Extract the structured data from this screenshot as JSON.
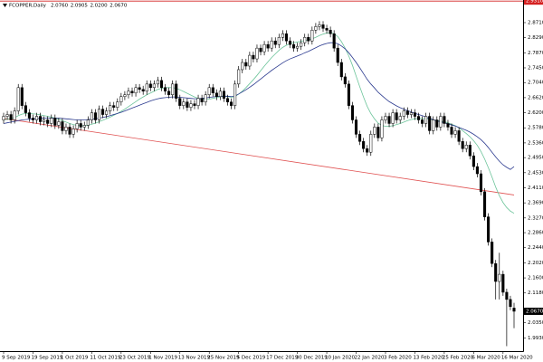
{
  "chart_data": {
    "type": "candlestick",
    "symbol": "FCOPPER,Daily",
    "header_labels": [
      "2.0760",
      "2.0905",
      "2.0200",
      "2.0670"
    ],
    "categories": [
      "9 Sep 2019",
      null,
      null,
      null,
      null,
      null,
      null,
      null,
      "19 Sep 2019",
      null,
      null,
      null,
      null,
      null,
      null,
      null,
      "1 Oct 2019",
      null,
      null,
      null,
      null,
      null,
      null,
      null,
      "11 Oct 2019",
      null,
      null,
      null,
      null,
      null,
      null,
      null,
      "23 Oct 2019",
      null,
      null,
      null,
      null,
      null,
      null,
      null,
      "1 Nov 2019",
      null,
      null,
      null,
      null,
      null,
      null,
      null,
      "13 Nov 2019",
      null,
      null,
      null,
      null,
      null,
      null,
      null,
      "25 Nov 2019",
      null,
      null,
      null,
      null,
      null,
      null,
      null,
      "5 Dec 2019",
      null,
      null,
      null,
      null,
      null,
      null,
      null,
      "17 Dec 2019",
      null,
      null,
      null,
      null,
      null,
      null,
      null,
      "30 Dec 2019",
      null,
      null,
      null,
      null,
      null,
      null,
      null,
      "10 Jan 2020",
      null,
      null,
      null,
      null,
      null,
      null,
      null,
      "22 Jan 2020",
      null,
      null,
      null,
      null,
      null,
      null,
      null,
      "3 Feb 2020",
      null,
      null,
      null,
      null,
      null,
      null,
      null,
      "13 Feb 2020",
      null,
      null,
      null,
      null,
      null,
      null,
      null,
      "25 Feb 2020",
      null,
      null,
      null,
      null,
      null,
      null,
      null,
      "6 Mar 2020",
      null,
      null,
      null,
      null,
      null,
      null,
      null,
      "16 Mar 2020",
      null,
      null,
      null
    ],
    "open": [
      2.6,
      2.61,
      2.615,
      2.6,
      2.625,
      2.69,
      2.64,
      2.62,
      2.605,
      2.6,
      2.61,
      2.595,
      2.6,
      2.59,
      2.605,
      2.585,
      2.595,
      2.57,
      2.58,
      2.56,
      2.575,
      2.59,
      2.58,
      2.585,
      2.6,
      2.62,
      2.6,
      2.63,
      2.615,
      2.625,
      2.64,
      2.635,
      2.65,
      2.665,
      2.67,
      2.68,
      2.675,
      2.69,
      2.685,
      2.68,
      2.7,
      2.69,
      2.7,
      2.71,
      2.69,
      2.68,
      2.67,
      2.7,
      2.66,
      2.64,
      2.65,
      2.635,
      2.645,
      2.64,
      2.66,
      2.65,
      2.67,
      2.69,
      2.675,
      2.665,
      2.68,
      2.66,
      2.65,
      2.64,
      2.7,
      2.74,
      2.76,
      2.75,
      2.78,
      2.77,
      2.8,
      2.79,
      2.81,
      2.8,
      2.82,
      2.81,
      2.83,
      2.84,
      2.82,
      2.81,
      2.8,
      2.805,
      2.815,
      2.83,
      2.82,
      2.85,
      2.86,
      2.865,
      2.855,
      2.85,
      2.84,
      2.8,
      2.76,
      2.72,
      2.7,
      2.64,
      2.6,
      2.56,
      2.54,
      2.52,
      2.51,
      2.56,
      2.58,
      2.55,
      2.6,
      2.61,
      2.59,
      2.62,
      2.6,
      2.61,
      2.625,
      2.615,
      2.62,
      2.61,
      2.6,
      2.59,
      2.61,
      2.57,
      2.6,
      2.58,
      2.61,
      2.59,
      2.58,
      2.56,
      2.57,
      2.54,
      2.52,
      2.53,
      2.5,
      2.47,
      2.45,
      2.4,
      2.33,
      2.26,
      2.2,
      2.15,
      2.17,
      2.12,
      2.1,
      2.076
    ],
    "high": [
      2.62,
      2.625,
      2.625,
      2.635,
      2.7,
      2.7,
      2.65,
      2.63,
      2.615,
      2.62,
      2.62,
      2.61,
      2.61,
      2.615,
      2.615,
      2.605,
      2.605,
      2.59,
      2.59,
      2.585,
      2.6,
      2.6,
      2.595,
      2.61,
      2.63,
      2.63,
      2.64,
      2.64,
      2.635,
      2.65,
      2.65,
      2.66,
      2.675,
      2.68,
      2.69,
      2.69,
      2.7,
      2.7,
      2.695,
      2.71,
      2.71,
      2.71,
      2.72,
      2.72,
      2.7,
      2.69,
      2.71,
      2.71,
      2.67,
      2.66,
      2.66,
      2.655,
      2.655,
      2.67,
      2.67,
      2.68,
      2.7,
      2.7,
      2.685,
      2.69,
      2.69,
      2.67,
      2.66,
      2.71,
      2.75,
      2.77,
      2.77,
      2.79,
      2.79,
      2.81,
      2.81,
      2.82,
      2.82,
      2.83,
      2.83,
      2.84,
      2.85,
      2.85,
      2.83,
      2.82,
      2.815,
      2.825,
      2.84,
      2.84,
      2.86,
      2.87,
      2.875,
      2.875,
      2.865,
      2.86,
      2.85,
      2.81,
      2.77,
      2.73,
      2.71,
      2.65,
      2.61,
      2.57,
      2.55,
      2.53,
      2.57,
      2.59,
      2.59,
      2.61,
      2.62,
      2.62,
      2.63,
      2.63,
      2.62,
      2.635,
      2.635,
      2.63,
      2.63,
      2.62,
      2.61,
      2.62,
      2.62,
      2.61,
      2.61,
      2.62,
      2.62,
      2.6,
      2.59,
      2.58,
      2.58,
      2.55,
      2.54,
      2.54,
      2.51,
      2.48,
      2.46,
      2.41,
      2.34,
      2.27,
      2.21,
      2.23,
      2.18,
      2.13,
      2.11,
      2.0905
    ],
    "low": [
      2.59,
      2.6,
      2.59,
      2.59,
      2.615,
      2.63,
      2.61,
      2.595,
      2.59,
      2.59,
      2.585,
      2.585,
      2.58,
      2.58,
      2.575,
      2.575,
      2.56,
      2.56,
      2.55,
      2.55,
      2.565,
      2.57,
      2.57,
      2.575,
      2.59,
      2.59,
      2.59,
      2.605,
      2.605,
      2.615,
      2.625,
      2.625,
      2.64,
      2.655,
      2.66,
      2.665,
      2.665,
      2.675,
      2.67,
      2.67,
      2.68,
      2.68,
      2.69,
      2.68,
      2.67,
      2.66,
      2.66,
      2.65,
      2.63,
      2.63,
      2.625,
      2.625,
      2.63,
      2.63,
      2.64,
      2.64,
      2.66,
      2.665,
      2.655,
      2.655,
      2.65,
      2.64,
      2.63,
      2.63,
      2.69,
      2.73,
      2.74,
      2.74,
      2.76,
      2.76,
      2.78,
      2.78,
      2.79,
      2.79,
      2.8,
      2.8,
      2.82,
      2.81,
      2.8,
      2.79,
      2.79,
      2.795,
      2.805,
      2.81,
      2.81,
      2.84,
      2.85,
      2.845,
      2.84,
      2.83,
      2.79,
      2.75,
      2.71,
      2.69,
      2.63,
      2.59,
      2.55,
      2.53,
      2.51,
      2.5,
      2.5,
      2.55,
      2.54,
      2.54,
      2.59,
      2.58,
      2.58,
      2.59,
      2.59,
      2.6,
      2.605,
      2.605,
      2.6,
      2.59,
      2.58,
      2.58,
      2.56,
      2.56,
      2.57,
      2.57,
      2.58,
      2.57,
      2.55,
      2.55,
      2.53,
      2.51,
      2.51,
      2.49,
      2.46,
      2.44,
      2.39,
      2.32,
      2.25,
      2.19,
      2.1,
      2.1,
      2.11,
      1.97,
      2.07,
      2.02
    ],
    "close": [
      2.61,
      2.615,
      2.6,
      2.625,
      2.69,
      2.64,
      2.62,
      2.605,
      2.6,
      2.61,
      2.595,
      2.6,
      2.59,
      2.605,
      2.585,
      2.595,
      2.57,
      2.58,
      2.56,
      2.575,
      2.59,
      2.58,
      2.585,
      2.6,
      2.62,
      2.6,
      2.63,
      2.615,
      2.625,
      2.64,
      2.635,
      2.65,
      2.665,
      2.67,
      2.68,
      2.675,
      2.69,
      2.685,
      2.68,
      2.7,
      2.69,
      2.7,
      2.71,
      2.69,
      2.68,
      2.67,
      2.7,
      2.66,
      2.64,
      2.65,
      2.635,
      2.645,
      2.64,
      2.66,
      2.65,
      2.67,
      2.69,
      2.675,
      2.665,
      2.68,
      2.66,
      2.65,
      2.64,
      2.7,
      2.74,
      2.76,
      2.75,
      2.78,
      2.77,
      2.8,
      2.79,
      2.81,
      2.8,
      2.82,
      2.81,
      2.83,
      2.84,
      2.82,
      2.81,
      2.8,
      2.805,
      2.815,
      2.83,
      2.82,
      2.85,
      2.86,
      2.865,
      2.855,
      2.85,
      2.84,
      2.8,
      2.76,
      2.72,
      2.7,
      2.64,
      2.6,
      2.56,
      2.54,
      2.52,
      2.51,
      2.56,
      2.58,
      2.55,
      2.6,
      2.61,
      2.59,
      2.62,
      2.6,
      2.61,
      2.625,
      2.615,
      2.62,
      2.61,
      2.6,
      2.59,
      2.61,
      2.57,
      2.6,
      2.58,
      2.61,
      2.59,
      2.58,
      2.56,
      2.57,
      2.54,
      2.52,
      2.53,
      2.5,
      2.47,
      2.45,
      2.4,
      2.33,
      2.26,
      2.2,
      2.15,
      2.17,
      2.12,
      2.1,
      2.08,
      2.067
    ],
    "up_color": "#ffffff",
    "down_color": "#000000",
    "wick_color": "#000000",
    "series": [
      {
        "color": "#6cc49a",
        "values": [
          2.6,
          2.602,
          2.604,
          2.606,
          2.612,
          2.616,
          2.618,
          2.618,
          2.617,
          2.616,
          2.614,
          2.612,
          2.61,
          2.608,
          2.605,
          2.602,
          2.598,
          2.594,
          2.59,
          2.587,
          2.585,
          2.584,
          2.584,
          2.585,
          2.588,
          2.591,
          2.595,
          2.599,
          2.603,
          2.608,
          2.613,
          2.618,
          2.624,
          2.63,
          2.637,
          2.644,
          2.651,
          2.658,
          2.664,
          2.67,
          2.675,
          2.68,
          2.685,
          2.688,
          2.69,
          2.69,
          2.69,
          2.688,
          2.684,
          2.679,
          2.674,
          2.669,
          2.664,
          2.66,
          2.658,
          2.657,
          2.658,
          2.66,
          2.662,
          2.664,
          2.666,
          2.665,
          2.663,
          2.665,
          2.672,
          2.68,
          2.69,
          2.701,
          2.712,
          2.724,
          2.737,
          2.75,
          2.762,
          2.774,
          2.784,
          2.794,
          2.802,
          2.808,
          2.812,
          2.815,
          2.817,
          2.819,
          2.821,
          2.823,
          2.826,
          2.83,
          2.835,
          2.839,
          2.842,
          2.843,
          2.84,
          2.832,
          2.818,
          2.8,
          2.778,
          2.752,
          2.722,
          2.692,
          2.664,
          2.638,
          2.618,
          2.603,
          2.591,
          2.585,
          2.582,
          2.582,
          2.584,
          2.587,
          2.59,
          2.594,
          2.598,
          2.601,
          2.603,
          2.604,
          2.604,
          2.604,
          2.602,
          2.6,
          2.598,
          2.597,
          2.595,
          2.592,
          2.588,
          2.584,
          2.578,
          2.57,
          2.562,
          2.553,
          2.542,
          2.529,
          2.512,
          2.491,
          2.467,
          2.441,
          2.413,
          2.389,
          2.37,
          2.356,
          2.346,
          2.34
        ]
      },
      {
        "color": "#2b3a8f",
        "values": [
          2.59,
          2.592,
          2.594,
          2.596,
          2.598,
          2.6,
          2.601,
          2.602,
          2.603,
          2.604,
          2.604,
          2.605,
          2.605,
          2.605,
          2.605,
          2.605,
          2.604,
          2.603,
          2.602,
          2.601,
          2.6,
          2.6,
          2.6,
          2.601,
          2.602,
          2.603,
          2.605,
          2.607,
          2.609,
          2.612,
          2.615,
          2.618,
          2.621,
          2.625,
          2.629,
          2.633,
          2.637,
          2.641,
          2.645,
          2.649,
          2.653,
          2.656,
          2.659,
          2.661,
          2.662,
          2.663,
          2.664,
          2.664,
          2.663,
          2.662,
          2.661,
          2.66,
          2.659,
          2.659,
          2.66,
          2.661,
          2.663,
          2.664,
          2.665,
          2.666,
          2.666,
          2.666,
          2.665,
          2.667,
          2.672,
          2.678,
          2.684,
          2.691,
          2.698,
          2.706,
          2.714,
          2.722,
          2.73,
          2.738,
          2.745,
          2.752,
          2.759,
          2.765,
          2.77,
          2.774,
          2.778,
          2.782,
          2.787,
          2.791,
          2.796,
          2.801,
          2.806,
          2.81,
          2.813,
          2.815,
          2.815,
          2.812,
          2.806,
          2.798,
          2.787,
          2.774,
          2.76,
          2.745,
          2.729,
          2.713,
          2.7,
          2.689,
          2.677,
          2.668,
          2.659,
          2.651,
          2.645,
          2.639,
          2.634,
          2.63,
          2.626,
          2.622,
          2.619,
          2.615,
          2.612,
          2.608,
          2.604,
          2.601,
          2.597,
          2.595,
          2.592,
          2.589,
          2.586,
          2.583,
          2.579,
          2.575,
          2.571,
          2.566,
          2.56,
          2.553,
          2.545,
          2.535,
          2.523,
          2.51,
          2.497,
          2.485,
          2.475,
          2.468,
          2.462,
          2.47
        ]
      }
    ],
    "trendline": {
      "color": "#e05050",
      "values": [
        2.604,
        2.391
      ]
    },
    "hline": {
      "color": "#d42020",
      "value": 2.931,
      "label": "2.9310"
    },
    "last_price": {
      "value": 2.067,
      "label": "2.0670"
    },
    "ylim": [
      1.956,
      2.934
    ],
    "yticks": [
      {
        "value": 2.871,
        "label": "2.8710"
      },
      {
        "value": 2.829,
        "label": "2.8290"
      },
      {
        "value": 2.787,
        "label": "2.7870"
      },
      {
        "value": 2.745,
        "label": "2.7450"
      },
      {
        "value": 2.704,
        "label": "2.7040"
      },
      {
        "value": 2.662,
        "label": "2.6620"
      },
      {
        "value": 2.62,
        "label": "2.6200"
      },
      {
        "value": 2.578,
        "label": "2.5780"
      },
      {
        "value": 2.536,
        "label": "2.5360"
      },
      {
        "value": 2.495,
        "label": "2.4950"
      },
      {
        "value": 2.453,
        "label": "2.4530"
      },
      {
        "value": 2.411,
        "label": "2.4110"
      },
      {
        "value": 2.369,
        "label": "2.3690"
      },
      {
        "value": 2.327,
        "label": "2.3270"
      },
      {
        "value": 2.286,
        "label": "2.2860"
      },
      {
        "value": 2.244,
        "label": "2.2440"
      },
      {
        "value": 2.202,
        "label": "2.2020"
      },
      {
        "value": 2.16,
        "label": "2.1600"
      },
      {
        "value": 2.118,
        "label": "2.1180"
      },
      {
        "value": 2.035,
        "label": "2.0350"
      },
      {
        "value": 1.993,
        "label": "1.9930"
      }
    ]
  }
}
